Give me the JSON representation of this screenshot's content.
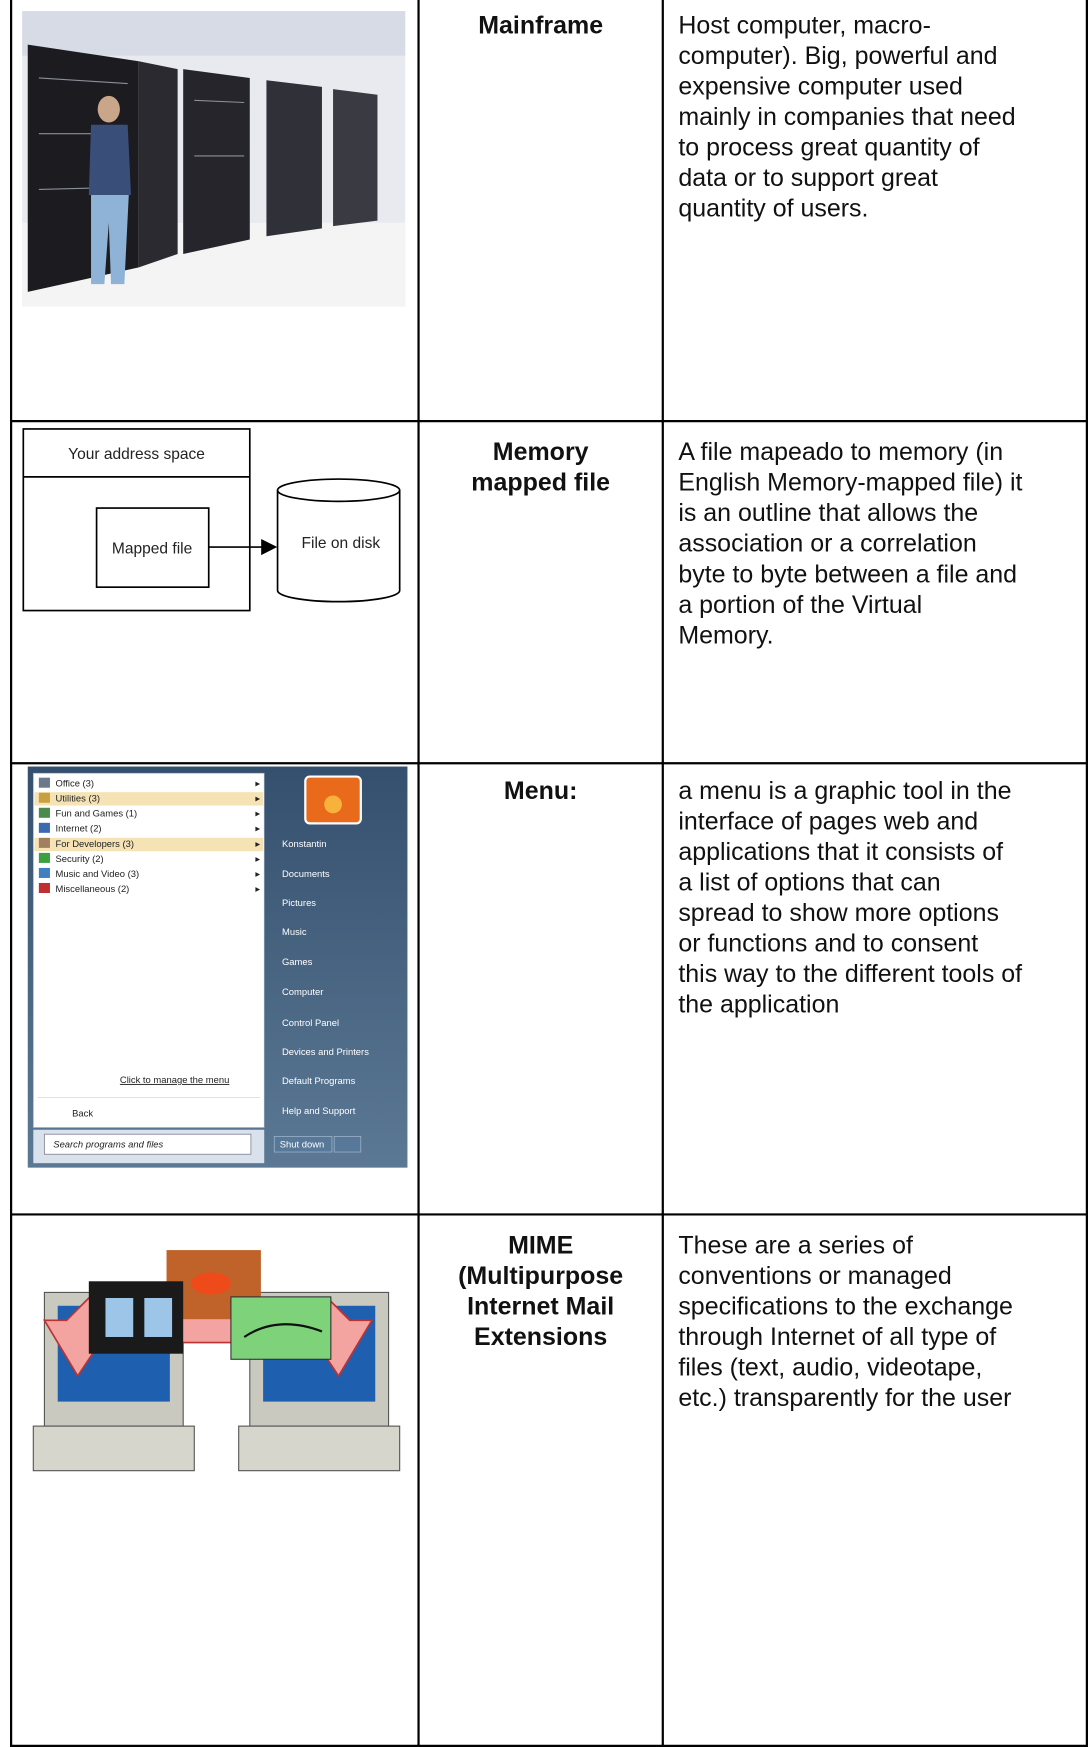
{
  "table": {
    "rows": [
      {
        "term": [
          "Mainframe"
        ],
        "description": [
          "Host computer, macro-",
          "computer). Big, powerful and",
          "expensive computer used",
          "mainly in companies that  need",
          "to process great quantity of",
          "data or to support great",
          "quantity of users."
        ]
      },
      {
        "term": [
          "Memory",
          "mapped file"
        ],
        "description": [
          "A file mapeado to memory (in",
          "English Memory-mapped file) it",
          "is an outline that allows the",
          "association or a correlation",
          "byte to byte between a file and",
          "a portion of the Virtual",
          "Memory."
        ],
        "image_text": [
          "Your address space",
          "Mapped file",
          "File on disk"
        ]
      },
      {
        "term": [
          "Menu:"
        ],
        "description": [
          "a menu is a graphic tool in the",
          "interface of pages web and",
          "applications that it consists of",
          "a list of options that can",
          "spread to show more options",
          "or functions and to consent",
          "this way to the different tools of",
          "the application"
        ],
        "image_text": {
          "left": [
            "Office (3)",
            "Utilities (3)",
            "Fun and Games (1)",
            "Internet (2)",
            "For Developers (3)",
            "Security (2)",
            "Music and Video (3)",
            "Miscellaneous (2)"
          ],
          "manage": "Click to manage the menu",
          "back": "Back",
          "search": "Search programs and files",
          "right": [
            "Konstantin",
            "Documents",
            "Pictures",
            "Music",
            "Games",
            "Computer",
            "Control Panel",
            "Devices and Printers",
            "Default Programs",
            "Help and Support"
          ],
          "shutdown": "Shut down"
        }
      },
      {
        "term": [
          "MIME",
          "(Multipurpose",
          "Internet Mail",
          "Extensions"
        ],
        "description": [
          "These are a series of",
          "conventions or managed",
          "specifications to the exchange",
          "through Internet of all type of",
          "files (text, audio, videotape,",
          "etc.) transparently for the user"
        ]
      }
    ]
  }
}
